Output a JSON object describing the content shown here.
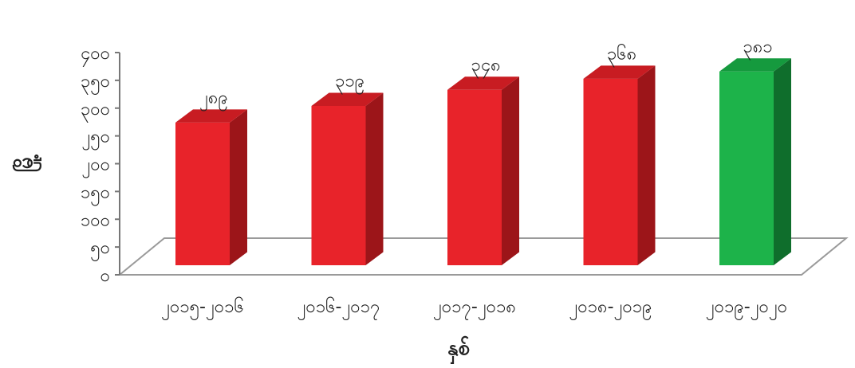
{
  "chart_data": {
    "type": "bar",
    "title": "",
    "xlabel": "နှစ်",
    "ylabel": "မြို့",
    "ylim": [
      0,
      400
    ],
    "yticks": [
      {
        "value": 0,
        "label": "၀"
      },
      {
        "value": 50,
        "label": "၅၀"
      },
      {
        "value": 100,
        "label": "၁၀၀"
      },
      {
        "value": 150,
        "label": "၁၅၀"
      },
      {
        "value": 200,
        "label": "၂၀၀"
      },
      {
        "value": 250,
        "label": "၂၅၀"
      },
      {
        "value": 300,
        "label": "၃၀၀"
      },
      {
        "value": 350,
        "label": "၃၅၀"
      },
      {
        "value": 400,
        "label": "၄၀၀"
      }
    ],
    "categories": [
      "၂၀၁၅-၂၀၁၆",
      "၂၀၁၆-၂၀၁၇",
      "၂၀၁၇-၂၀၁၈",
      "၂၀၁၈-၂၀၁၉",
      "၂၀၁၉-၂၀၂၀"
    ],
    "values": [
      289,
      319,
      348,
      368,
      381
    ],
    "value_labels": [
      "၂၈၉",
      "၃၁၉",
      "၃၄၈",
      "၃၆၈",
      "၃၈၁"
    ],
    "bar_colors": [
      "#e8232a",
      "#e8232a",
      "#e8232a",
      "#e8232a",
      "#1db34a"
    ],
    "bar_side_colors": [
      "#9c1519",
      "#9c1519",
      "#9c1519",
      "#9c1519",
      "#0f6e2c"
    ],
    "bar_top_colors": [
      "#c81c22",
      "#c81c22",
      "#c81c22",
      "#c81c22",
      "#159a3e"
    ],
    "grid": false,
    "legend": "none"
  }
}
